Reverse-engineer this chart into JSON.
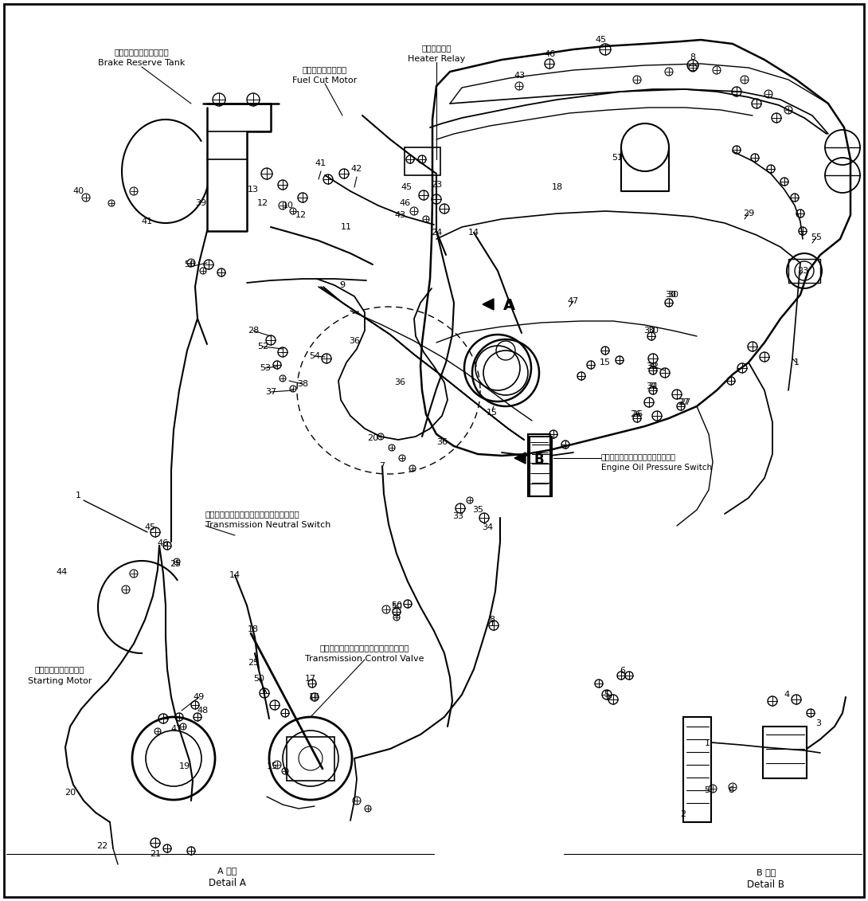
{
  "background_color": "#ffffff",
  "line_color": "#000000",
  "fig_width": 10.9,
  "fig_height": 11.31,
  "dpi": 100,
  "border": [
    5,
    5,
    1080,
    1121
  ],
  "labels": {
    "brake_reserve_tank_jp": "ブレーキリザーブタンク",
    "brake_reserve_tank_en": "Brake Reserve Tank",
    "heater_relay_jp": "ヒータリレー",
    "heater_relay_en": "Heater Relay",
    "fuel_cut_motor_jp": "フェルカットモータ",
    "fuel_cut_motor_en": "Fuel Cut Motor",
    "engine_oil_pressure_jp": "エンジンオイルプレッシャスイッチ",
    "engine_oil_pressure_en": "Engine Oil Pressure Switch",
    "transmission_neutral_jp": "トランスミッションニュートラルスイッチ",
    "transmission_neutral_en": "Transmission Neutral Switch",
    "transmission_control_jp": "トランスミッションコントロールバルブ",
    "transmission_control_en": "Transmission Control Valve",
    "starting_motor_jp": "スターティングモータ",
    "starting_motor_en": "Starting Motor",
    "detail_a_jp": "A 詳細",
    "detail_a_en": "Detail A",
    "detail_b_jp": "B 詳細",
    "detail_b_en": "Detail B"
  }
}
